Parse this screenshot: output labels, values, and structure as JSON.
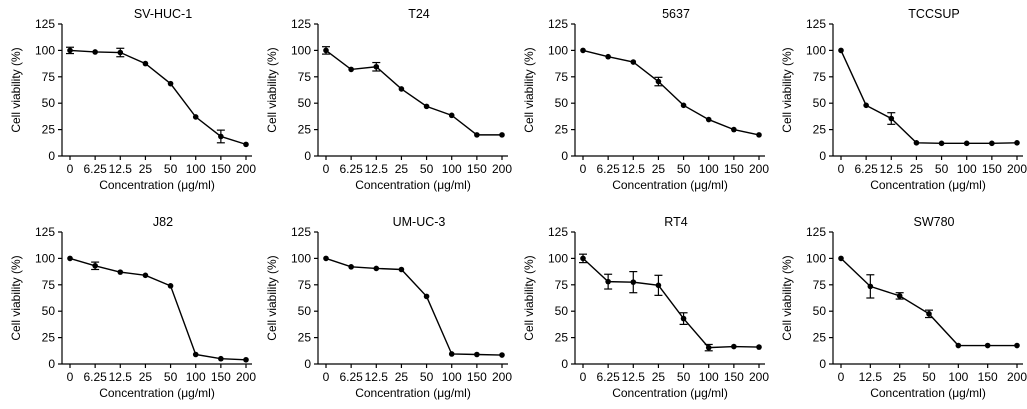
{
  "chart_data": [
    {
      "type": "line",
      "title": "SV-HUC-1",
      "xlabel": "Concentration (μg/ml)",
      "ylabel": "Cell viability (%)",
      "categories": [
        "0",
        "6.25",
        "12.5",
        "25",
        "50",
        "100",
        "150",
        "200"
      ],
      "values": [
        100,
        98.5,
        98,
        87.5,
        68.5,
        37,
        18.5,
        11
      ],
      "errors": [
        3,
        0,
        4,
        0,
        0,
        0,
        6,
        0
      ],
      "ylim": [
        0,
        125
      ],
      "yticks": [
        "0",
        "25",
        "50",
        "75",
        "100",
        "125"
      ]
    },
    {
      "type": "line",
      "title": "T24",
      "xlabel": "Concentration (μg/ml)",
      "ylabel": "Cell viability (%)",
      "categories": [
        "0",
        "6.25",
        "12.5",
        "25",
        "50",
        "100",
        "150",
        "200"
      ],
      "values": [
        100,
        82,
        84.5,
        63.5,
        47,
        38.5,
        20,
        20
      ],
      "errors": [
        3.5,
        0,
        4,
        0,
        0,
        0,
        0,
        0
      ],
      "ylim": [
        0,
        125
      ],
      "yticks": [
        "0",
        "25",
        "50",
        "75",
        "100",
        "125"
      ]
    },
    {
      "type": "line",
      "title": "5637",
      "xlabel": "Concentration (μg/ml)",
      "ylabel": "Cell viability (%)",
      "categories": [
        "0",
        "6.25",
        "12.5",
        "25",
        "50",
        "100",
        "150",
        "200"
      ],
      "values": [
        100,
        94,
        89,
        70.5,
        48,
        34.5,
        25,
        20
      ],
      "errors": [
        0,
        0,
        0,
        4,
        0,
        0,
        0,
        0
      ],
      "ylim": [
        0,
        125
      ],
      "yticks": [
        "0",
        "25",
        "50",
        "75",
        "100",
        "125"
      ]
    },
    {
      "type": "line",
      "title": "TCCSUP",
      "xlabel": "Concentration (μg/ml)",
      "ylabel": "Cell viability (%)",
      "categories": [
        "0",
        "6.25",
        "12.5",
        "25",
        "50",
        "100",
        "150",
        "200"
      ],
      "values": [
        100,
        48,
        35.5,
        12.5,
        12,
        12,
        12,
        12.5
      ],
      "errors": [
        0,
        0,
        5.5,
        0,
        0,
        0,
        0,
        0
      ],
      "ylim": [
        0,
        125
      ],
      "yticks": [
        "0",
        "25",
        "50",
        "75",
        "100",
        "125"
      ]
    },
    {
      "type": "line",
      "title": "J82",
      "xlabel": "Concentration (μg/ml)",
      "ylabel": "Cell viability (%)",
      "categories": [
        "0",
        "6.25",
        "12.5",
        "25",
        "50",
        "100",
        "150",
        "200"
      ],
      "values": [
        100,
        93,
        87,
        84,
        74,
        9,
        5,
        4
      ],
      "errors": [
        0,
        3.5,
        0,
        0,
        0,
        0,
        0,
        0
      ],
      "ylim": [
        0,
        125
      ],
      "yticks": [
        "0",
        "25",
        "50",
        "75",
        "100",
        "125"
      ]
    },
    {
      "type": "line",
      "title": "UM-UC-3",
      "xlabel": "Concentration (μg/ml)",
      "ylabel": "Cell viability (%)",
      "categories": [
        "0",
        "6.25",
        "12.5",
        "25",
        "50",
        "100",
        "150",
        "200"
      ],
      "values": [
        100,
        92,
        90.5,
        89.5,
        64,
        9.5,
        9,
        8.5
      ],
      "errors": [
        0,
        0,
        0,
        0,
        0,
        0,
        0,
        0
      ],
      "ylim": [
        0,
        125
      ],
      "yticks": [
        "0",
        "25",
        "50",
        "75",
        "100",
        "125"
      ]
    },
    {
      "type": "line",
      "title": "RT4",
      "xlabel": "Concentration (μg/ml)",
      "ylabel": "Cell viability (%)",
      "categories": [
        "0",
        "6.25",
        "12.5",
        "25",
        "50",
        "100",
        "150",
        "200"
      ],
      "values": [
        100,
        78,
        77.5,
        74.5,
        43,
        15.5,
        16.5,
        16
      ],
      "errors": [
        4,
        7,
        10,
        9.5,
        5.5,
        3,
        0,
        0
      ],
      "ylim": [
        0,
        125
      ],
      "yticks": [
        "0",
        "25",
        "50",
        "75",
        "100",
        "125"
      ]
    },
    {
      "type": "line",
      "title": "SW780",
      "xlabel": "Concentration (μg/ml)",
      "ylabel": "Cell viability (%)",
      "categories": [
        "0",
        "12.5",
        "25",
        "50",
        "100",
        "150",
        "200"
      ],
      "values": [
        100,
        73.5,
        64.5,
        47.5,
        17.5,
        17.5,
        17.5
      ],
      "errors": [
        0,
        11,
        3,
        3.5,
        0,
        0,
        0
      ],
      "ylim": [
        0,
        125
      ],
      "yticks": [
        "0",
        "25",
        "50",
        "75",
        "100",
        "125"
      ]
    }
  ]
}
